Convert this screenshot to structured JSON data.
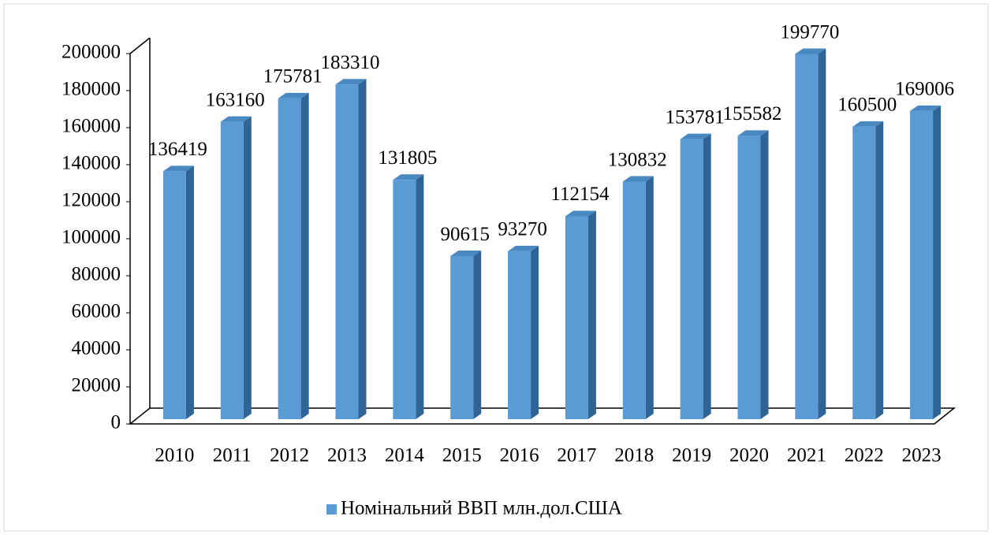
{
  "chart_data": {
    "type": "bar3d",
    "categories": [
      "2010",
      "2011",
      "2012",
      "2013",
      "2014",
      "2015",
      "2016",
      "2017",
      "2018",
      "2019",
      "2020",
      "2021",
      "2022",
      "2023"
    ],
    "series": [
      {
        "name": "Номінальний ВВП млн.дол.США",
        "color": "#5b9bd5",
        "values": [
          136419,
          163160,
          175781,
          183310,
          131805,
          90615,
          93270,
          112154,
          130832,
          153781,
          155582,
          199770,
          160500,
          169006
        ]
      }
    ],
    "ylim": [
      0,
      200000
    ],
    "yticks": [
      0,
      20000,
      40000,
      60000,
      80000,
      100000,
      120000,
      140000,
      160000,
      180000,
      200000
    ],
    "legend": "bottom"
  }
}
